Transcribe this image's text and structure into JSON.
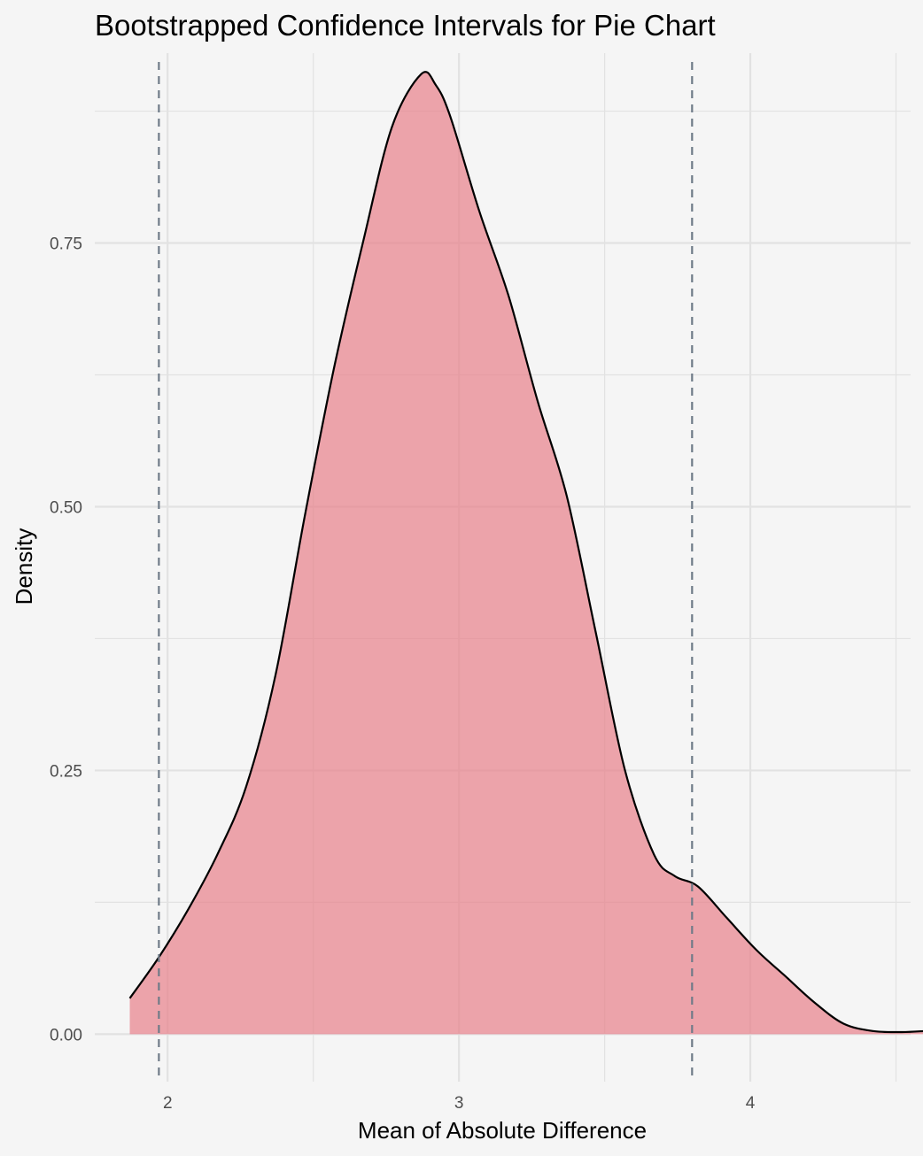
{
  "chart_data": {
    "type": "area",
    "title": "Bootstrapped Confidence Intervals for Pie Chart",
    "xlabel": "Mean of Absolute Difference",
    "ylabel": "Density",
    "xlim": [
      1.75,
      4.55
    ],
    "ylim": [
      -0.045,
      0.93
    ],
    "x_ticks": [
      2,
      3,
      4
    ],
    "x_tick_labels": [
      "2",
      "3",
      "4"
    ],
    "y_ticks": [
      0.0,
      0.25,
      0.5,
      0.75
    ],
    "y_tick_labels": [
      "0.00",
      "0.25",
      "0.50",
      "0.75"
    ],
    "grid": true,
    "density": {
      "x": [
        1.87,
        1.97,
        2.07,
        2.17,
        2.27,
        2.37,
        2.47,
        2.57,
        2.67,
        2.77,
        2.87,
        2.92,
        2.97,
        3.07,
        3.17,
        3.27,
        3.37,
        3.47,
        3.57,
        3.67,
        3.74,
        3.82,
        3.92,
        4.02,
        4.12,
        4.22,
        4.32,
        4.42,
        4.52,
        4.6
      ],
      "y": [
        0.034,
        0.073,
        0.118,
        0.17,
        0.235,
        0.34,
        0.49,
        0.63,
        0.75,
        0.86,
        0.91,
        0.9,
        0.87,
        0.78,
        0.7,
        0.6,
        0.51,
        0.38,
        0.25,
        0.17,
        0.15,
        0.14,
        0.11,
        0.08,
        0.055,
        0.03,
        0.01,
        0.003,
        0.002,
        0.003
      ]
    },
    "ci_lines": [
      1.97,
      3.8
    ],
    "colors": {
      "fill": "#e8808a",
      "fill_opacity": 0.7,
      "line": "#000000",
      "ci_line": "#6f7b88",
      "grid": "#e2e2e2",
      "background": "#f5f5f5"
    }
  }
}
